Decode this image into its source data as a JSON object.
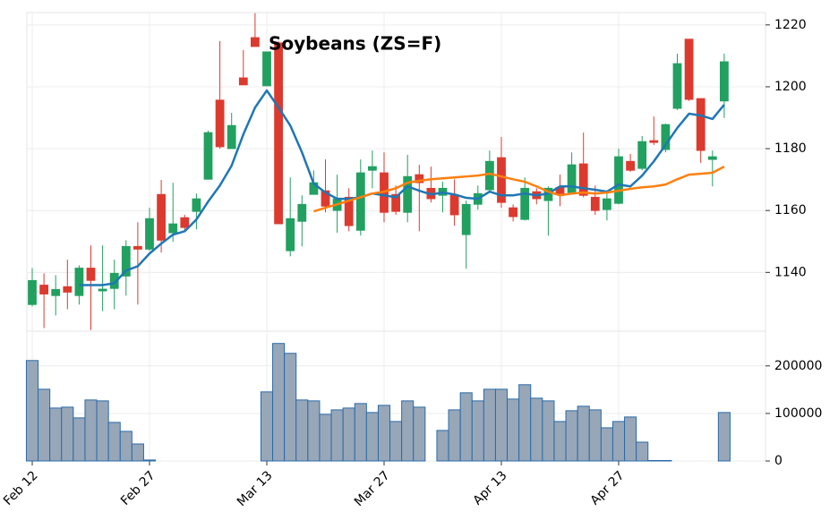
{
  "chart_data": {
    "type": "candlestick",
    "title": "Soybeans (ZS=F)",
    "categories": [
      "Feb 12",
      null,
      null,
      null,
      null,
      null,
      null,
      null,
      null,
      null,
      "Feb 27",
      null,
      null,
      null,
      null,
      null,
      null,
      null,
      null,
      null,
      "Mar 13",
      null,
      null,
      null,
      null,
      null,
      null,
      null,
      null,
      null,
      "Mar 27",
      null,
      null,
      null,
      null,
      null,
      null,
      null,
      null,
      null,
      "Apr 13",
      null,
      null,
      null,
      null,
      null,
      null,
      null,
      null,
      null,
      "Apr 27",
      null,
      null,
      null,
      null,
      null,
      null,
      null,
      null,
      null
    ],
    "open": [
      1129.6,
      1135.9,
      1132.5,
      1135.4,
      1132.5,
      1141.4,
      1134.0,
      1134.8,
      1138.8,
      1148.4,
      1147.5,
      1165.2,
      1152.8,
      1157.7,
      1159.7,
      1170.1,
      1195.7,
      1180.0,
      1202.9,
      1215.9,
      1200.3,
      1214.2,
      1147.0,
      1156.5,
      1165.2,
      1166.4,
      1160.0,
      1164.3,
      1153.6,
      1173.0,
      1172.2,
      1165.2,
      1159.4,
      1171.6,
      1167.2,
      1164.9,
      1164.9,
      1152.2,
      1162.0,
      1166.7,
      1177.1,
      1160.9,
      1157.1,
      1166.1,
      1163.2,
      1167.5,
      1165.8,
      1175.1,
      1164.3,
      1160.3,
      1162.3,
      1175.9,
      1173.6,
      1182.6,
      1179.7,
      1193.0,
      1215.4,
      1196.2,
      1176.5,
      1195.4
    ],
    "high": [
      1141.4,
      1139.7,
      1139.1,
      1144.1,
      1142.3,
      1148.7,
      1148.7,
      1144.1,
      1150.4,
      1156.2,
      1160.9,
      1169.9,
      1169.0,
      1158.6,
      1165.5,
      1185.8,
      1214.8,
      1191.6,
      1211.9,
      1223.8,
      1211.3,
      1214.8,
      1170.7,
      1164.9,
      1173.0,
      1176.5,
      1171.6,
      1167.2,
      1176.5,
      1179.4,
      1178.8,
      1168.1,
      1178.0,
      1174.8,
      1174.2,
      1169.3,
      1170.1,
      1163.2,
      1168.1,
      1179.4,
      1183.8,
      1162.0,
      1170.7,
      1167.2,
      1167.8,
      1171.6,
      1178.8,
      1185.2,
      1168.1,
      1165.5,
      1180.0,
      1178.3,
      1184.1,
      1190.4,
      1188.1,
      1210.7,
      1215.4,
      1196.2,
      1179.4,
      1210.7
    ],
    "low": [
      1129.0,
      1122.0,
      1126.1,
      1128.1,
      1129.6,
      1121.4,
      1127.5,
      1128.1,
      1132.5,
      1129.6,
      1147.0,
      1146.4,
      1149.9,
      1153.3,
      1153.9,
      1170.1,
      1180.0,
      1180.0,
      1200.6,
      1213.0,
      1200.3,
      1155.7,
      1145.2,
      1148.4,
      1165.8,
      1159.4,
      1152.8,
      1153.3,
      1151.9,
      1167.2,
      1156.2,
      1158.6,
      1156.2,
      1153.3,
      1162.6,
      1159.4,
      1155.1,
      1141.2,
      1160.3,
      1165.8,
      1160.9,
      1156.5,
      1156.8,
      1162.0,
      1151.9,
      1161.4,
      1165.2,
      1164.3,
      1158.6,
      1156.8,
      1162.0,
      1172.5,
      1173.0,
      1181.2,
      1178.8,
      1192.5,
      1195.4,
      1175.4,
      1167.8,
      1189.9
    ],
    "close": [
      1137.4,
      1133.0,
      1134.5,
      1133.6,
      1141.4,
      1137.4,
      1134.6,
      1139.7,
      1148.4,
      1147.5,
      1157.4,
      1150.4,
      1155.7,
      1154.5,
      1163.8,
      1185.2,
      1180.6,
      1187.5,
      1200.6,
      1213.0,
      1211.3,
      1155.7,
      1157.4,
      1162.0,
      1169.0,
      1161.4,
      1163.8,
      1155.1,
      1172.2,
      1174.2,
      1159.4,
      1159.7,
      1171.0,
      1169.0,
      1163.8,
      1167.2,
      1158.6,
      1162.0,
      1165.5,
      1175.9,
      1162.6,
      1158.0,
      1167.2,
      1163.8,
      1167.2,
      1165.5,
      1174.8,
      1164.9,
      1160.0,
      1163.8,
      1177.4,
      1173.0,
      1182.3,
      1182.0,
      1187.8,
      1207.5,
      1195.9,
      1179.4,
      1177.4,
      1208.1
    ],
    "up_color": "#22a060",
    "down_color": "#dc3a2f",
    "series": [
      {
        "color": "#1f77b4",
        "values": [
          null,
          null,
          null,
          null,
          1135.9,
          1135.9,
          1135.9,
          1136.5,
          1140.6,
          1142.0,
          1146.1,
          1149.3,
          1152.2,
          1153.3,
          1157.1,
          1162.9,
          1168.1,
          1174.5,
          1184.6,
          1193.3,
          1198.8,
          1193.3,
          1187.5,
          1178.8,
          1168.7,
          1165.8,
          1163.8,
          1163.8,
          1164.3,
          1165.5,
          1164.9,
          1164.3,
          1167.8,
          1166.4,
          1165.2,
          1165.8,
          1165.2,
          1164.1,
          1163.8,
          1166.1,
          1164.9,
          1164.9,
          1165.5,
          1164.9,
          1165.5,
          1167.8,
          1167.8,
          1167.2,
          1166.7,
          1166.1,
          1168.4,
          1167.8,
          1171.3,
          1175.9,
          1181.2,
          1186.7,
          1191.3,
          1190.7,
          1189.6,
          1194.2
        ]
      },
      {
        "color": "#ff7f0e",
        "values": [
          null,
          null,
          null,
          null,
          null,
          null,
          null,
          null,
          null,
          null,
          null,
          null,
          null,
          null,
          null,
          null,
          null,
          null,
          null,
          null,
          null,
          null,
          null,
          null,
          1159.7,
          1160.9,
          1162.0,
          1163.2,
          1164.3,
          1165.5,
          1166.1,
          1167.2,
          1169.0,
          1169.6,
          1170.1,
          1170.4,
          1170.7,
          1171.0,
          1171.3,
          1171.9,
          1171.0,
          1170.1,
          1169.3,
          1167.8,
          1166.1,
          1164.9,
          1165.5,
          1165.8,
          1165.5,
          1165.8,
          1166.4,
          1167.0,
          1167.5,
          1167.8,
          1168.4,
          1170.1,
          1171.6,
          1171.9,
          1172.2,
          1174.2
        ]
      }
    ],
    "ylim": [
      1121,
      1224
    ],
    "yticks": [
      1140,
      1160,
      1180,
      1200,
      1220
    ],
    "grid": true,
    "volume": {
      "fill": "#97a7b8",
      "edge": "#2a6aa8",
      "values": [
        211300,
        150900,
        111300,
        113200,
        90600,
        128300,
        126400,
        81100,
        62300,
        35800,
        2000,
        0,
        0,
        0,
        0,
        0,
        0,
        0,
        0,
        0,
        145300,
        247200,
        226400,
        128300,
        126400,
        98100,
        107500,
        111300,
        120800,
        101900,
        117000,
        83000,
        126400,
        113200,
        0,
        64200,
        107500,
        143400,
        126400,
        150900,
        150900,
        130200,
        160400,
        132100,
        126400,
        83000,
        105700,
        115100,
        107500,
        69800,
        83000,
        92500,
        39600,
        1000,
        1000,
        0,
        0,
        0,
        0,
        101900
      ],
      "ylim": [
        0,
        273000
      ],
      "yticks": [
        0,
        100000,
        200000
      ]
    }
  }
}
